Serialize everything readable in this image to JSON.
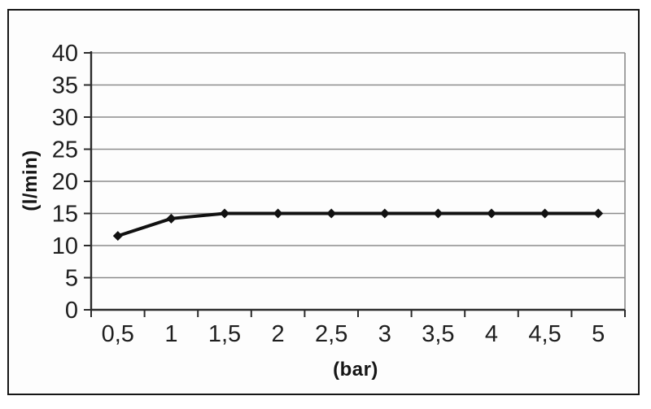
{
  "chart_data": {
    "type": "line",
    "title": "",
    "xlabel": "(bar)",
    "ylabel": "(l/min)",
    "categories": [
      "0,5",
      "1",
      "1,5",
      "2",
      "2,5",
      "3",
      "3,5",
      "4",
      "4,5",
      "5"
    ],
    "x_values": [
      0.5,
      1,
      1.5,
      2,
      2.5,
      3,
      3.5,
      4,
      4.5,
      5
    ],
    "series": [
      {
        "values": [
          11.5,
          14.2,
          15,
          15,
          15,
          15,
          15,
          15,
          15,
          15
        ]
      }
    ],
    "ylim": [
      0,
      40
    ],
    "yticks": [
      0,
      5,
      10,
      15,
      20,
      25,
      30,
      35,
      40
    ],
    "ytick_labels": [
      "0",
      "5",
      "10",
      "15",
      "20",
      "25",
      "30",
      "35",
      "40"
    ],
    "grid": "horizontal",
    "legend": "none",
    "marker_shape": "diamond",
    "colors": {
      "series_line": "#111111",
      "marker": "#111111",
      "gridline": "#8c8c8c",
      "axis_line": "#2b2b2b",
      "tick_text": "#1f1f1f",
      "frame_border": "#161616"
    }
  }
}
